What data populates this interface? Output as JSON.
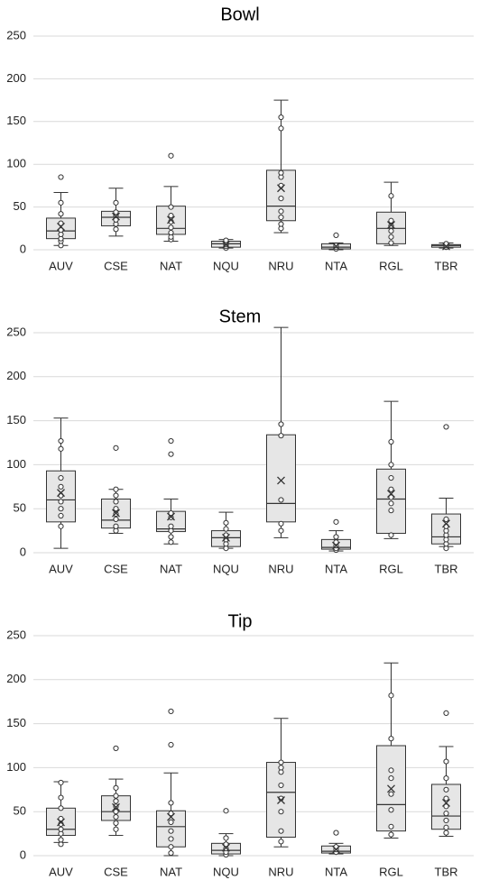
{
  "colors": {
    "box_fill": "#e6e6e6",
    "stroke": "#333333",
    "grid": "#d9d9d9"
  },
  "chart_data": [
    {
      "type": "box",
      "title": "Bowl",
      "xlabel": "",
      "ylabel": "",
      "ylim": [
        0,
        250
      ],
      "yticks": [
        0,
        50,
        100,
        150,
        200,
        250
      ],
      "grid": true,
      "categories": [
        "AUV",
        "CSE",
        "NAT",
        "NQU",
        "NRU",
        "NTA",
        "RGL",
        "TBR"
      ],
      "boxes": [
        {
          "min": 5,
          "q1": 13,
          "median": 22,
          "q3": 37,
          "max": 67,
          "mean": 27,
          "points": [
            5,
            10,
            13,
            18,
            23,
            31,
            42,
            55,
            85
          ]
        },
        {
          "min": 16,
          "q1": 28,
          "median": 38,
          "q3": 45,
          "max": 72,
          "mean": 39,
          "points": [
            24,
            30,
            35,
            40,
            44,
            55
          ]
        },
        {
          "min": 10,
          "q1": 18,
          "median": 25,
          "q3": 51,
          "max": 74,
          "mean": 35,
          "points": [
            12,
            15,
            20,
            26,
            33,
            40,
            50,
            110
          ]
        },
        {
          "min": 2,
          "q1": 3,
          "median": 7,
          "q3": 10,
          "max": 12,
          "mean": 6,
          "points": [
            2,
            4,
            6,
            8,
            11
          ]
        },
        {
          "min": 20,
          "q1": 34,
          "median": 51,
          "q3": 93,
          "max": 175,
          "mean": 72,
          "points": [
            25,
            30,
            38,
            45,
            60,
            75,
            85,
            90,
            142,
            155
          ]
        },
        {
          "min": 0,
          "q1": 1,
          "median": 3,
          "q3": 7,
          "max": 8,
          "mean": 4,
          "points": [
            1,
            3,
            5,
            17
          ]
        },
        {
          "min": 5,
          "q1": 7,
          "median": 25,
          "q3": 44,
          "max": 79,
          "mean": 29,
          "points": [
            8,
            15,
            22,
            28,
            34,
            63
          ]
        },
        {
          "min": 2,
          "q1": 3,
          "median": 5,
          "q3": 6,
          "max": 8,
          "mean": 4,
          "points": [
            3,
            5,
            7
          ]
        }
      ]
    },
    {
      "type": "box",
      "title": "Stem",
      "xlabel": "",
      "ylabel": "",
      "ylim": [
        0,
        250
      ],
      "yticks": [
        0,
        50,
        100,
        150,
        200,
        250
      ],
      "grid": true,
      "categories": [
        "AUV",
        "CSE",
        "NAT",
        "NQU",
        "NRU",
        "NTA",
        "RGL",
        "TBR"
      ],
      "boxes": [
        {
          "min": 5,
          "q1": 35,
          "median": 60,
          "q3": 93,
          "max": 153,
          "mean": 68,
          "points": [
            30,
            42,
            50,
            58,
            65,
            75,
            85,
            118,
            127
          ]
        },
        {
          "min": 22,
          "q1": 28,
          "median": 37,
          "q3": 61,
          "max": 72,
          "mean": 45,
          "points": [
            25,
            30,
            38,
            44,
            50,
            58,
            65,
            72,
            119
          ]
        },
        {
          "min": 10,
          "q1": 24,
          "median": 27,
          "q3": 47,
          "max": 61,
          "mean": 41,
          "points": [
            12,
            18,
            25,
            30,
            40,
            45,
            112,
            127
          ]
        },
        {
          "min": 5,
          "q1": 7,
          "median": 17,
          "q3": 25,
          "max": 46,
          "mean": 17,
          "points": [
            5,
            10,
            15,
            20,
            27,
            34
          ]
        },
        {
          "min": 17,
          "q1": 35,
          "median": 56,
          "q3": 134,
          "max": 256,
          "mean": 82,
          "points": [
            25,
            33,
            60,
            133,
            146
          ]
        },
        {
          "min": 2,
          "q1": 4,
          "median": 6,
          "q3": 15,
          "max": 25,
          "mean": 8,
          "points": [
            3,
            5,
            8,
            12,
            18,
            35
          ]
        },
        {
          "min": 16,
          "q1": 22,
          "median": 61,
          "q3": 95,
          "max": 172,
          "mean": 67,
          "points": [
            20,
            48,
            56,
            63,
            72,
            85,
            100,
            126
          ]
        },
        {
          "min": 7,
          "q1": 10,
          "median": 18,
          "q3": 44,
          "max": 62,
          "mean": 33,
          "points": [
            5,
            10,
            15,
            20,
            25,
            30,
            38,
            143
          ]
        }
      ]
    },
    {
      "type": "box",
      "title": "Tip",
      "xlabel": "",
      "ylabel": "",
      "ylim": [
        0,
        250
      ],
      "yticks": [
        0,
        50,
        100,
        150,
        200,
        250
      ],
      "grid": true,
      "categories": [
        "AUV",
        "CSE",
        "NAT",
        "NQU",
        "NRU",
        "NTA",
        "RGL",
        "TBR"
      ],
      "boxes": [
        {
          "min": 15,
          "q1": 23,
          "median": 30,
          "q3": 54,
          "max": 84,
          "mean": 38,
          "points": [
            13,
            18,
            25,
            30,
            36,
            42,
            54,
            66,
            83
          ]
        },
        {
          "min": 23,
          "q1": 40,
          "median": 50,
          "q3": 68,
          "max": 87,
          "mean": 55,
          "points": [
            30,
            37,
            44,
            50,
            56,
            62,
            68,
            77,
            122
          ]
        },
        {
          "min": 0,
          "q1": 10,
          "median": 33,
          "q3": 51,
          "max": 94,
          "mean": 44,
          "points": [
            3,
            10,
            19,
            28,
            38,
            48,
            60,
            126,
            164
          ]
        },
        {
          "min": 0,
          "q1": 2,
          "median": 6,
          "q3": 14,
          "max": 25,
          "mean": 9,
          "points": [
            1,
            4,
            8,
            13,
            20,
            51
          ]
        },
        {
          "min": 10,
          "q1": 21,
          "median": 72,
          "q3": 106,
          "max": 156,
          "mean": 63,
          "points": [
            16,
            28,
            50,
            65,
            80,
            95,
            100,
            106
          ]
        },
        {
          "min": 2,
          "q1": 3,
          "median": 5,
          "q3": 11,
          "max": 14,
          "mean": 7,
          "points": [
            4,
            7,
            10,
            26
          ]
        },
        {
          "min": 20,
          "q1": 28,
          "median": 58,
          "q3": 125,
          "max": 219,
          "mean": 76,
          "points": [
            24,
            33,
            52,
            70,
            88,
            97,
            133,
            182
          ]
        },
        {
          "min": 22,
          "q1": 30,
          "median": 45,
          "q3": 81,
          "max": 124,
          "mean": 60,
          "points": [
            26,
            32,
            40,
            48,
            56,
            65,
            75,
            88,
            107,
            162
          ]
        }
      ]
    }
  ]
}
